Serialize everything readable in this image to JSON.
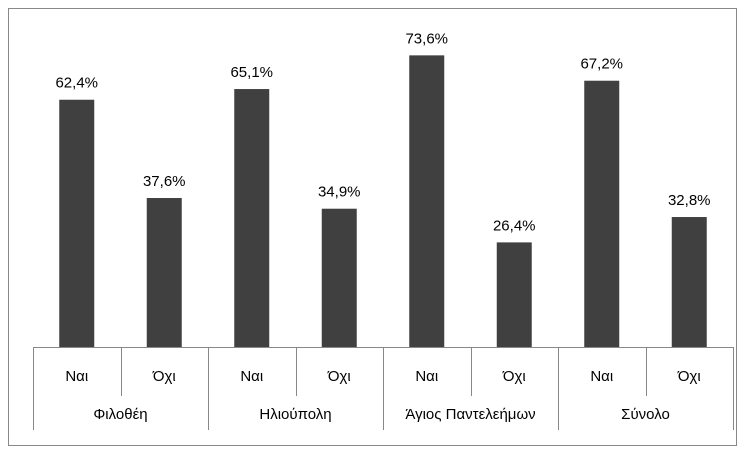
{
  "chart_data": {
    "type": "bar",
    "color": "#404040",
    "ylim": [
      0,
      80
    ],
    "groups": [
      {
        "label": "Φιλοθέη",
        "categories": [
          "Ναι",
          "Όχι"
        ],
        "values": [
          62.4,
          37.6
        ],
        "value_labels": [
          "62,4%",
          "37,6%"
        ]
      },
      {
        "label": "Ηλιούπολη",
        "categories": [
          "Ναι",
          "Όχι"
        ],
        "values": [
          65.1,
          34.9
        ],
        "value_labels": [
          "65,1%",
          "34,9%"
        ]
      },
      {
        "label": "Άγιος Παντελεήμων",
        "categories": [
          "Ναι",
          "Όχι"
        ],
        "values": [
          73.6,
          26.4
        ],
        "value_labels": [
          "73,6%",
          "26,4%"
        ]
      },
      {
        "label": "Σύνολο",
        "categories": [
          "Ναι",
          "Όχι"
        ],
        "values": [
          67.2,
          32.8
        ],
        "value_labels": [
          "67,2%",
          "32,8%"
        ]
      }
    ]
  }
}
